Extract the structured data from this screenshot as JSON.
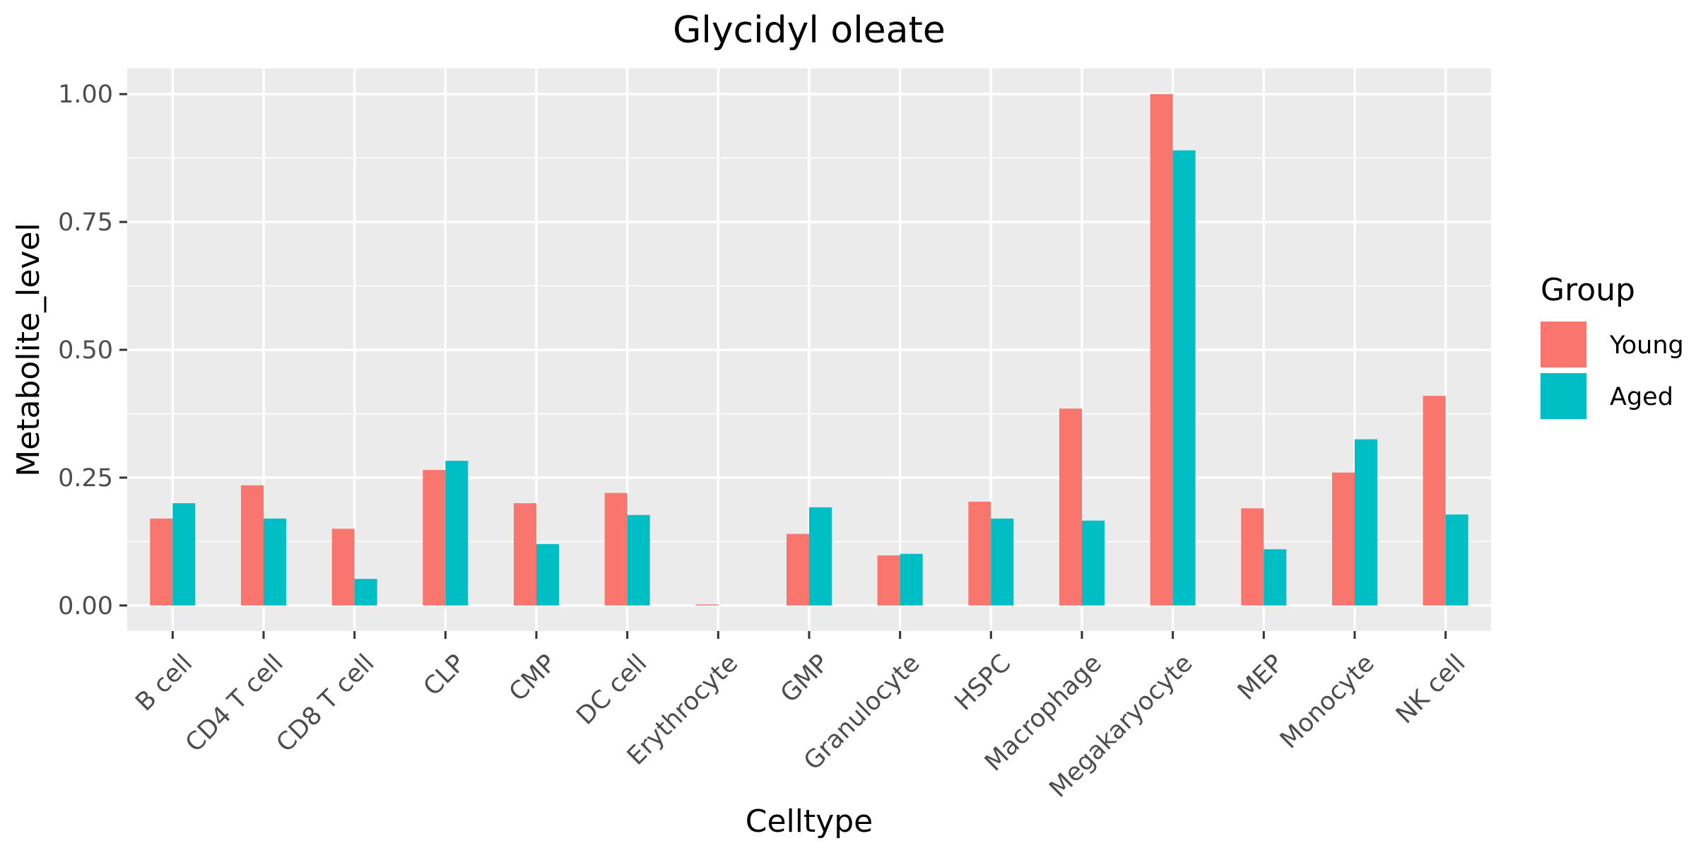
{
  "chart_data": {
    "type": "bar",
    "title": "Glycidyl oleate",
    "xlabel": "Celltype",
    "ylabel": "Metabolite_level",
    "ylim": [
      -0.05,
      1.05
    ],
    "yticks": [
      "0.00",
      "0.25",
      "0.50",
      "0.75",
      "1.00"
    ],
    "ytick_values": [
      0,
      0.25,
      0.5,
      0.75,
      1.0
    ],
    "grid": true,
    "legend": {
      "title": "Group",
      "placement": "right"
    },
    "categories": [
      "B cell",
      "CD4 T cell",
      "CD8 T cell",
      "CLP",
      "CMP",
      "DC cell",
      "Erythrocyte",
      "GMP",
      "Granulocyte",
      "HSPC",
      "Macrophage",
      "Megakaryocyte",
      "MEP",
      "Monocyte",
      "NK cell"
    ],
    "series": [
      {
        "name": "Young",
        "color": "#F8766D",
        "values": [
          0.17,
          0.235,
          0.15,
          0.265,
          0.2,
          0.22,
          0.002,
          0.14,
          0.098,
          0.203,
          0.385,
          1.0,
          0.19,
          0.26,
          0.41
        ]
      },
      {
        "name": "Aged",
        "color": "#00BFC4",
        "values": [
          0.2,
          0.17,
          0.052,
          0.283,
          0.12,
          0.177,
          0.0,
          0.192,
          0.101,
          0.17,
          0.166,
          0.89,
          0.11,
          0.325,
          0.178
        ]
      }
    ]
  },
  "colors": {
    "panel_background": "#EBEBEB",
    "grid_major": "#FFFFFF",
    "tick_text": "#4D4D4D"
  }
}
